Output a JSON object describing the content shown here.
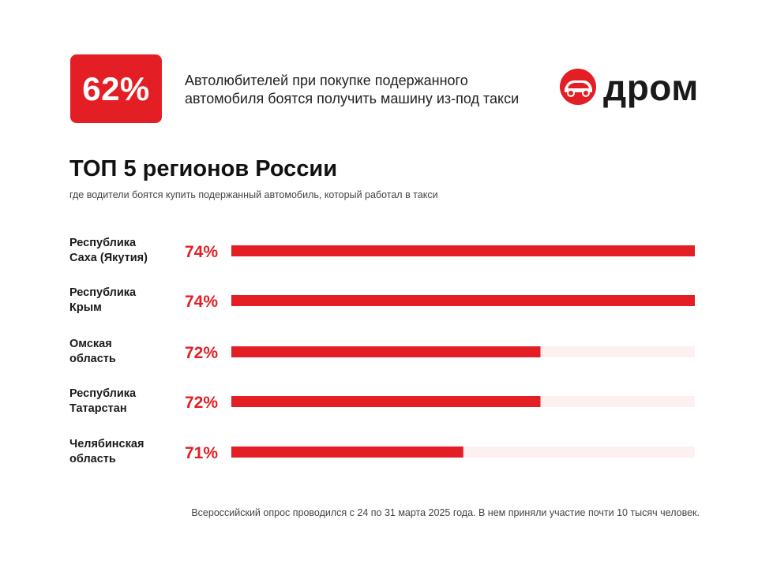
{
  "headline_stat": {
    "value": "62%",
    "text": "Автолюбителей при покупке подержанного автомобиля боятся получить машину из-под такси"
  },
  "brand": {
    "name": "дром"
  },
  "colors": {
    "accent": "#e31e24",
    "track": "#fdf0f0",
    "text": "#1a1a1a"
  },
  "chart_data": {
    "type": "bar",
    "orientation": "horizontal",
    "title": "ТОП 5 регионов России",
    "subtitle": "где водители боятся купить подержанный автомобиль, который работал в такси",
    "categories": [
      [
        "Республика",
        "Саха (Якутия)"
      ],
      [
        "Республика",
        "Крым"
      ],
      [
        "Омская",
        "область"
      ],
      [
        "Республика",
        "Татарстан"
      ],
      [
        "Челябинская",
        "область"
      ]
    ],
    "values": [
      74,
      74,
      72,
      72,
      71
    ],
    "value_labels": [
      "74%",
      "74%",
      "72%",
      "72%",
      "71%"
    ],
    "xlim": [
      70,
      74
    ],
    "unit": "%"
  },
  "footnote": "Всероссийский опрос проводился с 24 по 31 марта 2025 года. В нем приняли участие почти 10 тысяч человек."
}
